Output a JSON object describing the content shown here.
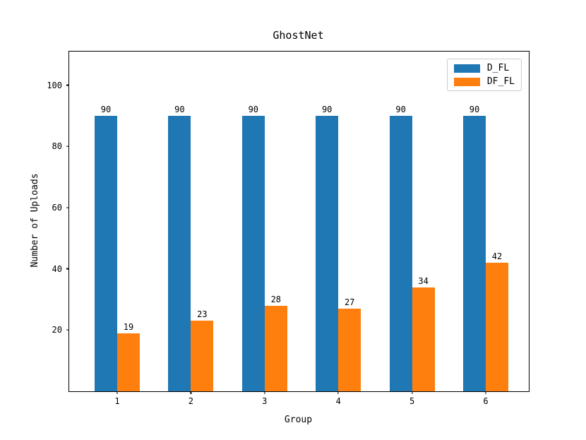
{
  "chart_data": {
    "type": "bar",
    "title": "GhostNet",
    "xlabel": "Group",
    "ylabel": "Number of Uploads",
    "categories": [
      "1",
      "2",
      "3",
      "4",
      "5",
      "6"
    ],
    "series": [
      {
        "name": "D_FL",
        "color": "#1f77b4",
        "values": [
          90,
          90,
          90,
          90,
          90,
          90
        ]
      },
      {
        "name": "DF_FL",
        "color": "#ff7f0e",
        "values": [
          19,
          23,
          28,
          27,
          34,
          42
        ]
      }
    ],
    "ylim": [
      0,
      111
    ],
    "yticks": [
      20,
      40,
      60,
      80,
      100
    ],
    "grid": false,
    "legend_position": "upper right",
    "bar_value_labels": true,
    "colors": {
      "background": "#ffffff",
      "axis": "#000000",
      "text": "#000000",
      "legend_border": "#cccccc"
    }
  }
}
